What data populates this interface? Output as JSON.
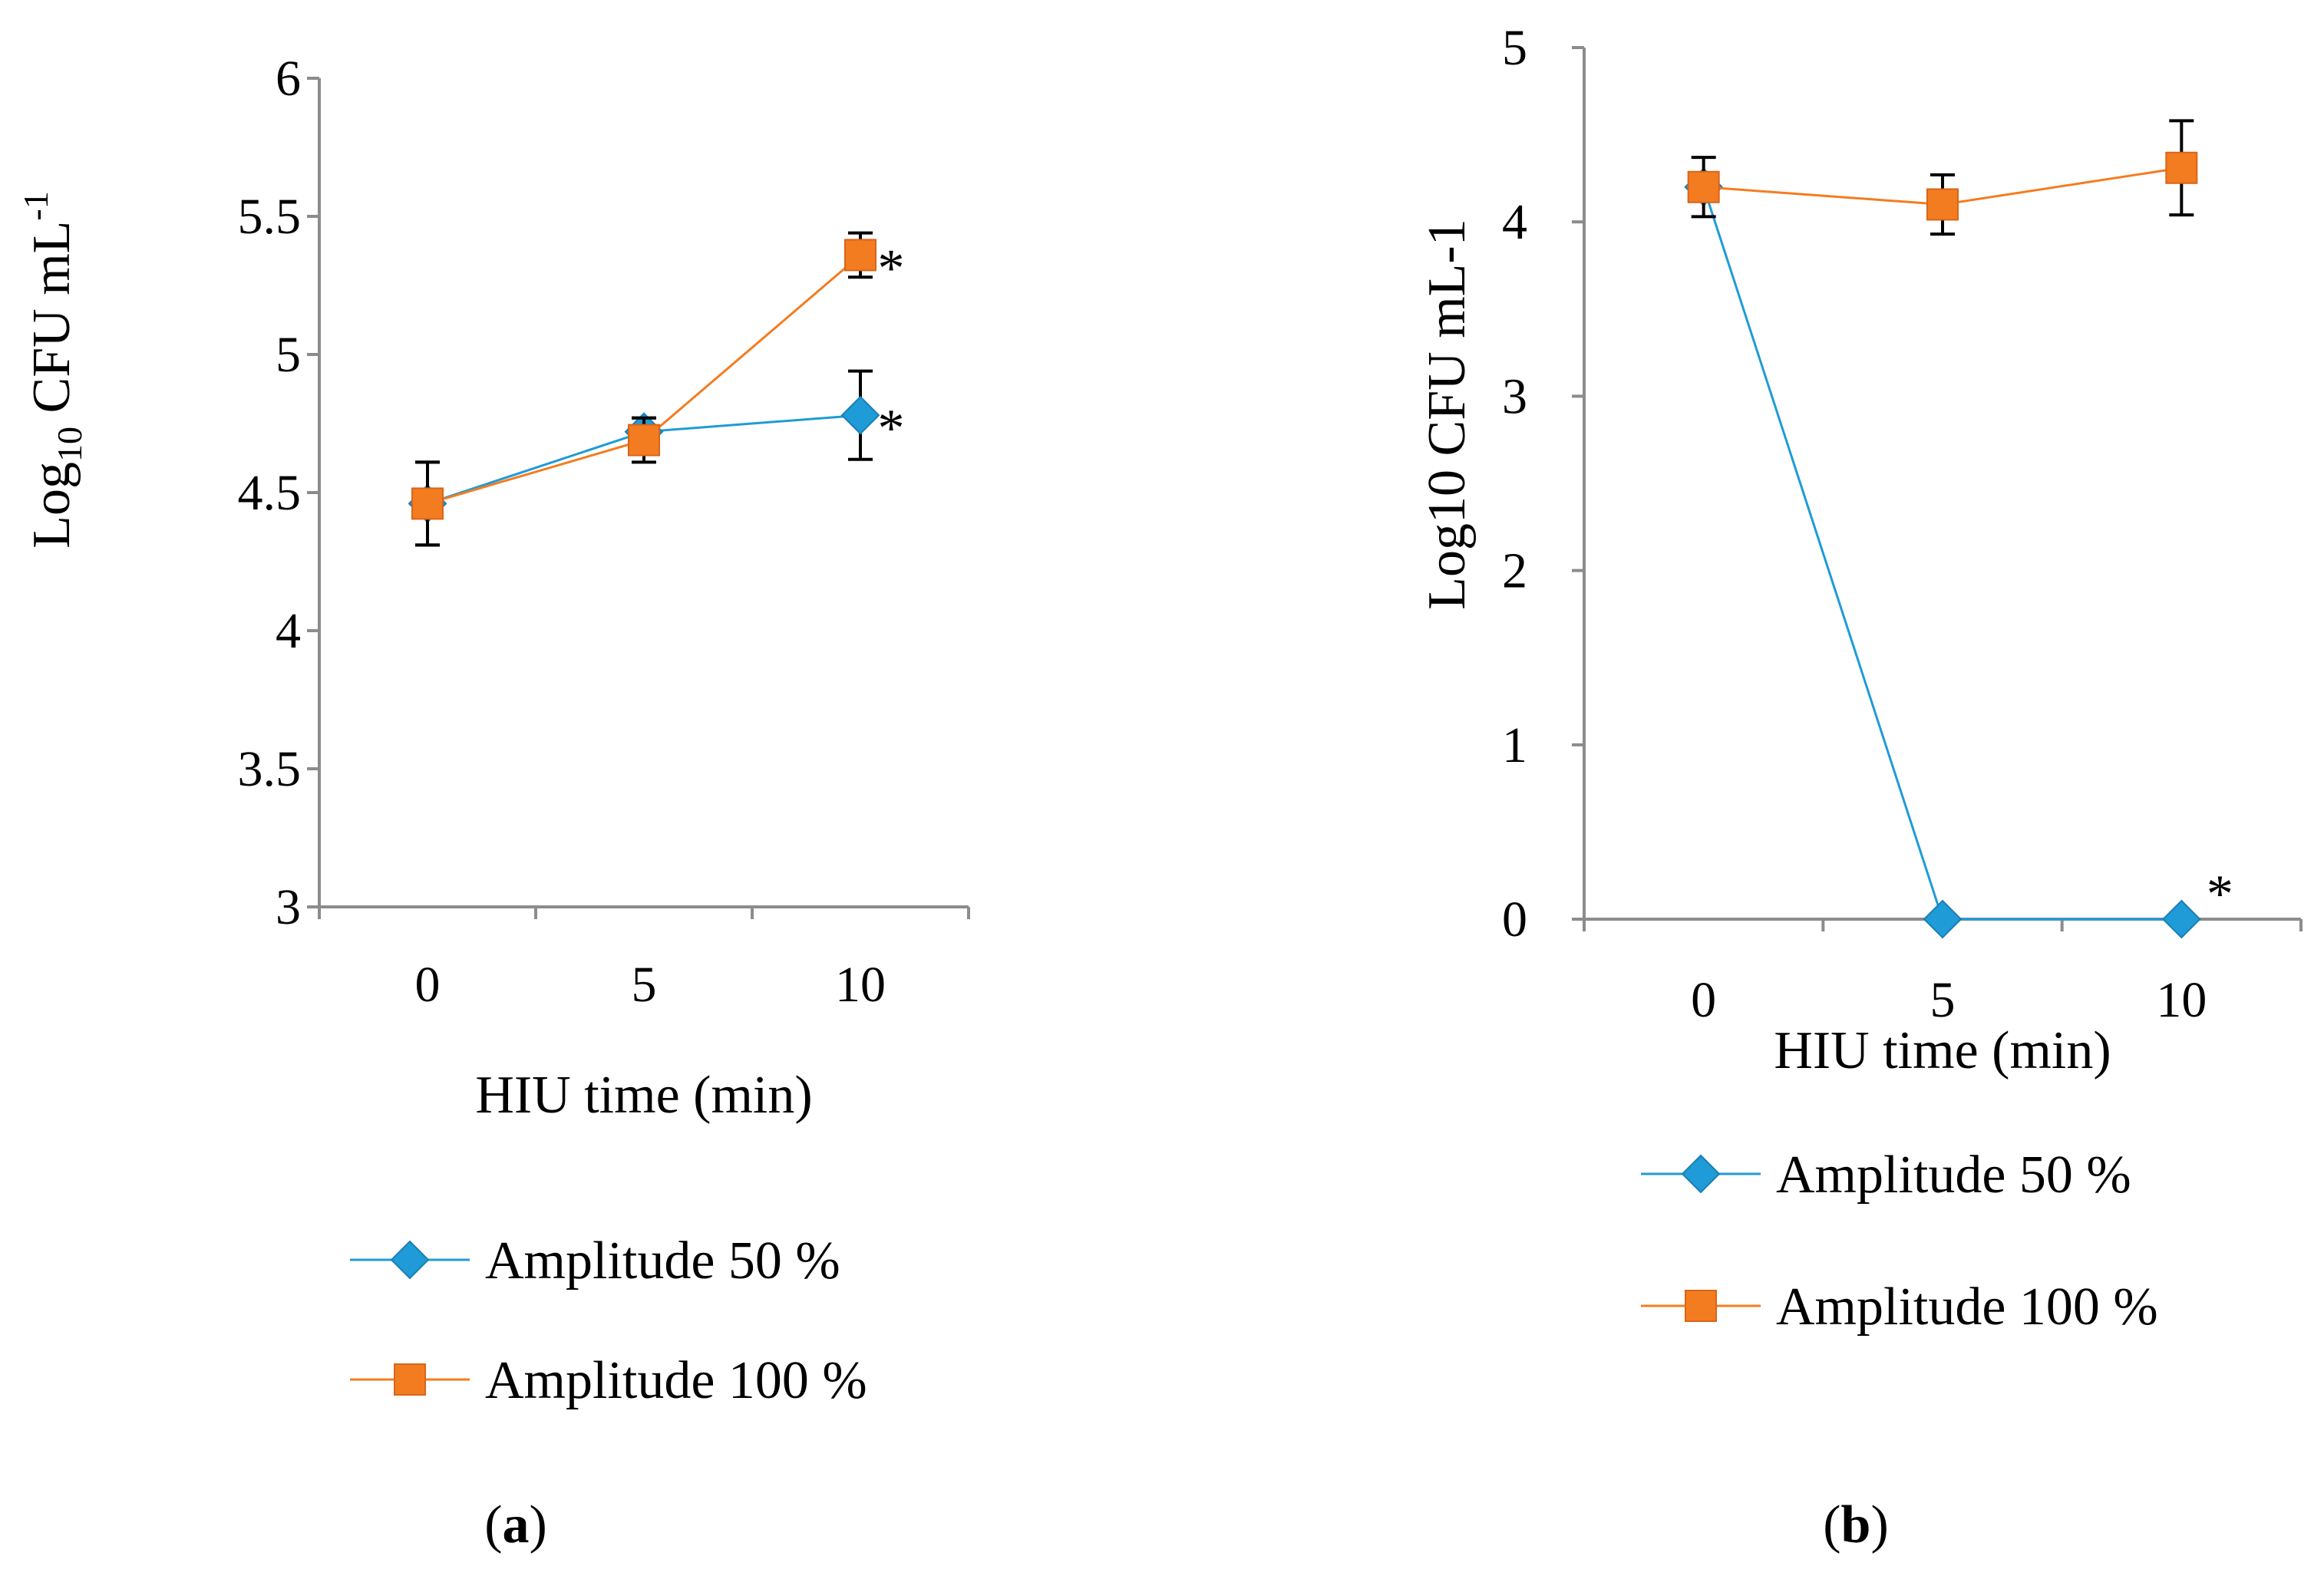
{
  "chart_data": [
    {
      "panel": "a",
      "panel_label": "(a)",
      "type": "line",
      "categories": [
        "0",
        "5",
        "10"
      ],
      "xlabel": "HIU time (min)",
      "ylabel_base": "Log",
      "ylabel_sub": "10",
      "ylabel_main": " CFU mL",
      "ylabel_sup": "-1",
      "ylim": [
        3,
        6
      ],
      "yticks": [
        "3",
        "3.5",
        "4",
        "4.5",
        "5",
        "5.5",
        "6"
      ],
      "series": [
        {
          "name": "Amplitude 50 %",
          "color": "#1f9bd7",
          "marker": "diamond",
          "values": [
            4.46,
            4.72,
            4.78
          ],
          "errors": [
            0.15,
            0.05,
            0.16
          ]
        },
        {
          "name": "Amplitude 100 %",
          "color": "#f47c20",
          "marker": "square",
          "values": [
            4.46,
            4.69,
            5.36
          ],
          "errors": [
            0.15,
            0.08,
            0.08
          ]
        }
      ],
      "annotations": [
        {
          "text": "*",
          "series": 1,
          "index": 2
        },
        {
          "text": "*",
          "series": 0,
          "index": 2
        }
      ],
      "legend_position": "bottom"
    },
    {
      "panel": "b",
      "panel_label": "(b)",
      "type": "line",
      "categories": [
        "0",
        "5",
        "10"
      ],
      "xlabel": "HIU time (min)",
      "ylabel": "Log10 CFU mL-1",
      "ylim": [
        0,
        5
      ],
      "yticks": [
        "0",
        "1",
        "2",
        "3",
        "4",
        "5"
      ],
      "series": [
        {
          "name": "Amplitude 50 %",
          "color": "#1f9bd7",
          "marker": "diamond",
          "values": [
            4.2,
            0,
            0
          ],
          "errors": [
            0,
            0,
            0
          ]
        },
        {
          "name": "Amplitude 100 %",
          "color": "#f47c20",
          "marker": "square",
          "values": [
            4.2,
            4.1,
            4.31
          ],
          "errors": [
            0.17,
            0.17,
            0.27
          ]
        }
      ],
      "annotations": [
        {
          "text": "*",
          "series": 0,
          "index": 2
        }
      ],
      "legend_position": "bottom"
    }
  ]
}
